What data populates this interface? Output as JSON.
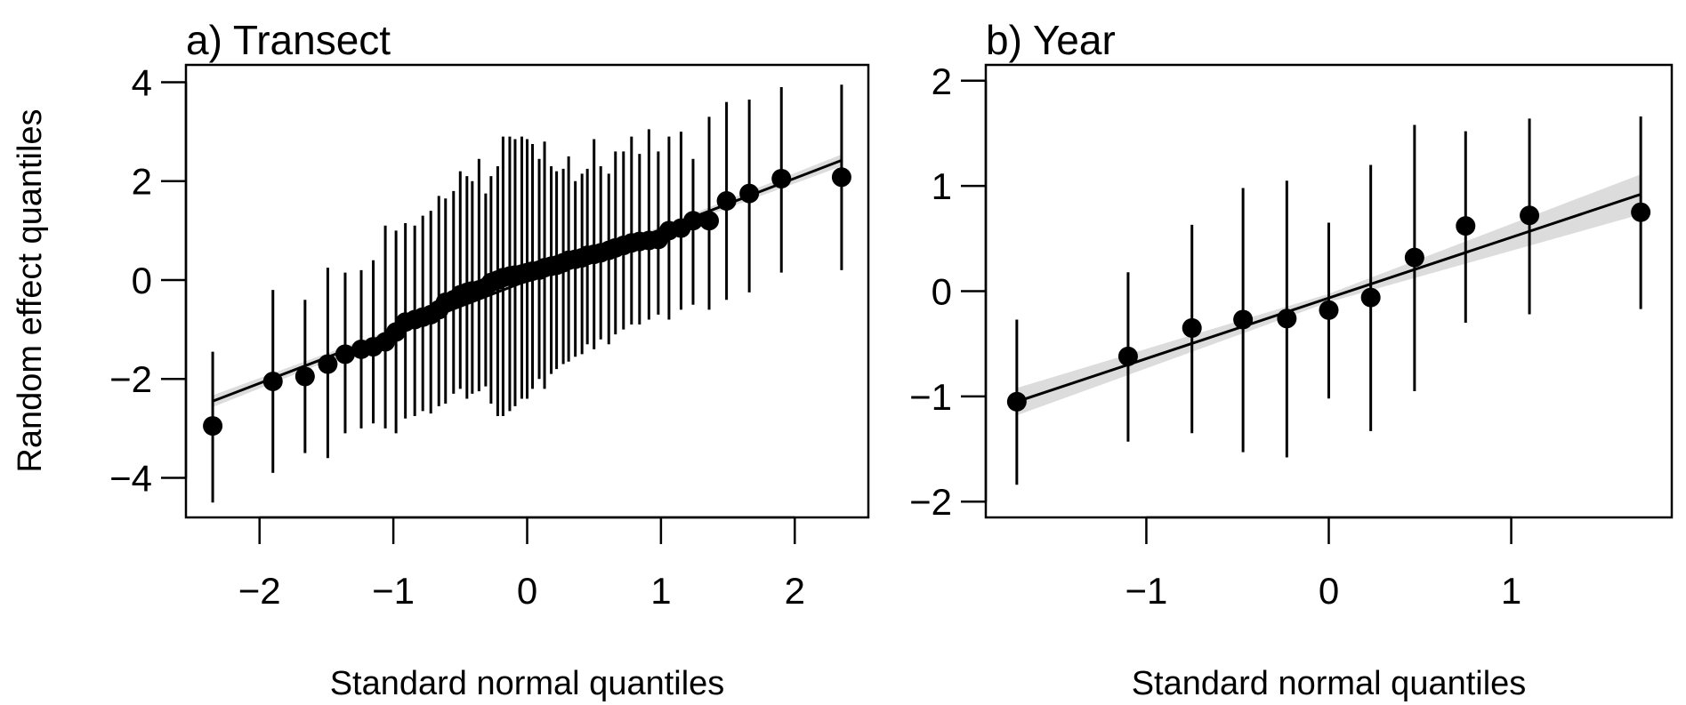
{
  "ylabel": "Random effect quantiles",
  "chart_data": [
    {
      "type": "scatter",
      "title": "a) Transect",
      "xlabel": "Standard normal quantiles",
      "ylabel": "Random effect quantiles",
      "xlim": [
        -2.55,
        2.55
      ],
      "ylim": [
        -4.8,
        4.35
      ],
      "xticks": [
        -2,
        -1,
        0,
        1,
        2
      ],
      "xtick_labels": [
        "−2",
        "−1",
        "0",
        "1",
        "2"
      ],
      "yticks": [
        -4,
        -2,
        0,
        2,
        4
      ],
      "ytick_labels": [
        "−4",
        "−2",
        "0",
        "2",
        "4"
      ],
      "reference_line": {
        "x": [
          -2.35,
          2.35
        ],
        "y": [
          -2.45,
          2.42
        ]
      },
      "band_halfwidth": [
        0.12,
        0.02,
        0.12
      ],
      "x": [
        -2.35,
        -1.9,
        -1.66,
        -1.49,
        -1.36,
        -1.24,
        -1.15,
        -1.06,
        -0.98,
        -0.91,
        -0.84,
        -0.78,
        -0.72,
        -0.66,
        -0.61,
        -0.55,
        -0.5,
        -0.45,
        -0.41,
        -0.36,
        -0.31,
        -0.27,
        -0.22,
        -0.18,
        -0.13,
        -0.09,
        -0.04,
        0.0,
        0.04,
        0.09,
        0.13,
        0.18,
        0.22,
        0.27,
        0.31,
        0.36,
        0.41,
        0.45,
        0.5,
        0.55,
        0.61,
        0.66,
        0.72,
        0.78,
        0.84,
        0.91,
        0.98,
        1.06,
        1.15,
        1.24,
        1.36,
        1.49,
        1.66,
        1.9,
        2.35
      ],
      "y": [
        -2.95,
        -2.05,
        -1.95,
        -1.7,
        -1.5,
        -1.4,
        -1.35,
        -1.25,
        -1.05,
        -0.85,
        -0.8,
        -0.75,
        -0.7,
        -0.6,
        -0.45,
        -0.4,
        -0.3,
        -0.25,
        -0.22,
        -0.2,
        -0.15,
        -0.05,
        0.0,
        0.05,
        0.08,
        0.1,
        0.12,
        0.15,
        0.18,
        0.2,
        0.25,
        0.28,
        0.3,
        0.35,
        0.4,
        0.42,
        0.45,
        0.5,
        0.52,
        0.55,
        0.6,
        0.65,
        0.7,
        0.75,
        0.78,
        0.8,
        0.82,
        1.0,
        1.05,
        1.2,
        1.2,
        1.6,
        1.75,
        2.05,
        2.08
      ],
      "lower": [
        -4.5,
        -3.9,
        -3.5,
        -3.6,
        -3.1,
        -3.0,
        -2.9,
        -3.0,
        -3.1,
        -2.8,
        -2.75,
        -2.65,
        -2.7,
        -2.55,
        -2.5,
        -2.3,
        -2.2,
        -2.4,
        -2.3,
        -2.25,
        -2.15,
        -2.5,
        -2.75,
        -2.75,
        -2.65,
        -2.55,
        -2.4,
        -2.4,
        -2.2,
        -2.0,
        -2.2,
        -1.9,
        -1.8,
        -1.7,
        -1.65,
        -1.55,
        -1.5,
        -1.3,
        -1.4,
        -1.2,
        -1.3,
        -1.1,
        -1.0,
        -0.9,
        -0.9,
        -0.8,
        -0.7,
        -0.8,
        -0.6,
        -0.5,
        -0.6,
        -0.4,
        -0.25,
        0.15,
        0.2
      ],
      "upper": [
        -1.45,
        -0.2,
        -0.4,
        0.25,
        0.15,
        0.2,
        0.4,
        1.1,
        1.0,
        1.15,
        1.1,
        1.3,
        1.4,
        1.7,
        1.65,
        1.8,
        2.2,
        2.1,
        2.0,
        2.45,
        1.75,
        2.1,
        2.3,
        2.9,
        2.9,
        2.85,
        2.9,
        2.85,
        2.75,
        2.45,
        2.8,
        2.3,
        2.2,
        2.25,
        2.5,
        2.0,
        2.15,
        2.25,
        2.85,
        2.3,
        2.15,
        2.6,
        2.6,
        2.9,
        2.55,
        3.05,
        2.6,
        2.9,
        3.0,
        2.45,
        3.3,
        3.6,
        3.65,
        3.9,
        3.95
      ]
    },
    {
      "type": "scatter",
      "title": "b) Year",
      "xlabel": "Standard normal quantiles",
      "ylabel": "",
      "xlim": [
        -1.88,
        1.88
      ],
      "ylim": [
        -2.15,
        2.15
      ],
      "xticks": [
        -1,
        0,
        1
      ],
      "xtick_labels": [
        "−1",
        "0",
        "1"
      ],
      "yticks": [
        -2,
        -1,
        0,
        1,
        2
      ],
      "ytick_labels": [
        "−2",
        "−1",
        "0",
        "1",
        "2"
      ],
      "reference_line": {
        "x": [
          -1.71,
          1.71
        ],
        "y": [
          -1.05,
          0.92
        ]
      },
      "band_halfwidth": [
        0.13,
        0.04,
        0.19
      ],
      "x": [
        -1.71,
        -1.1,
        -0.75,
        -0.47,
        -0.23,
        0.0,
        0.23,
        0.47,
        0.75,
        1.1,
        1.71
      ],
      "y": [
        -1.05,
        -0.62,
        -0.35,
        -0.27,
        -0.26,
        -0.18,
        -0.06,
        0.32,
        0.62,
        0.72,
        0.75
      ],
      "lower": [
        -1.84,
        -1.43,
        -1.35,
        -1.53,
        -1.58,
        -1.02,
        -1.33,
        -0.95,
        -0.3,
        -0.22,
        -0.17
      ],
      "upper": [
        -0.27,
        0.18,
        0.63,
        0.98,
        1.05,
        0.65,
        1.2,
        1.58,
        1.52,
        1.64,
        1.66
      ]
    }
  ]
}
